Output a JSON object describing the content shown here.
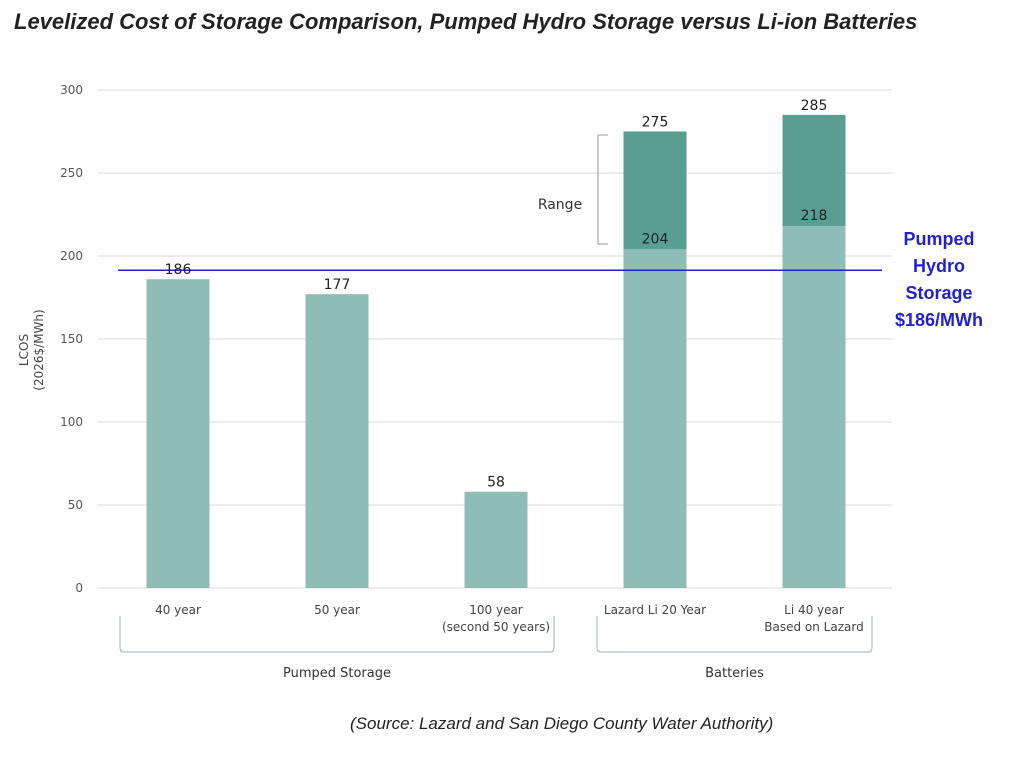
{
  "title": "Levelized Cost of Storage Comparison, Pumped Hydro Storage versus Li-ion Batteries",
  "source": "(Source: Lazard and San Diego County Water Authority)",
  "colors": {
    "bar_low": "#8fbcb7",
    "bar_range": "#5a9e92",
    "reference_line": "#1f1fd6",
    "grid": "#d9d9d9"
  },
  "chart_data": {
    "type": "bar",
    "title": "Levelized Cost of Storage Comparison, Pumped Hydro Storage versus Li-ion Batteries",
    "ylabel_lines": [
      "LCOS",
      "(2026$/MWh)"
    ],
    "ylim": [
      0,
      300
    ],
    "yticks": [
      0,
      50,
      100,
      150,
      200,
      250,
      300
    ],
    "grid": true,
    "categories": [
      {
        "lines": [
          "40 year"
        ],
        "group": "Pumped Storage"
      },
      {
        "lines": [
          "50 year"
        ],
        "group": "Pumped Storage"
      },
      {
        "lines": [
          "100 year",
          "(second 50 years)"
        ],
        "group": "Pumped Storage"
      },
      {
        "lines": [
          "Lazard Li 20 Year"
        ],
        "group": "Batteries"
      },
      {
        "lines": [
          "Li 40 year",
          "Based on Lazard"
        ],
        "group": "Batteries"
      }
    ],
    "groups": [
      "Pumped Storage",
      "Batteries"
    ],
    "values": [
      186,
      177,
      58,
      204,
      218
    ],
    "range_high": [
      null,
      null,
      null,
      275,
      285
    ],
    "range_label": "Range",
    "reference_line": {
      "value": 186,
      "label_lines": [
        "Pumped",
        "Hydro",
        "Storage",
        "$186/MWh"
      ]
    }
  }
}
